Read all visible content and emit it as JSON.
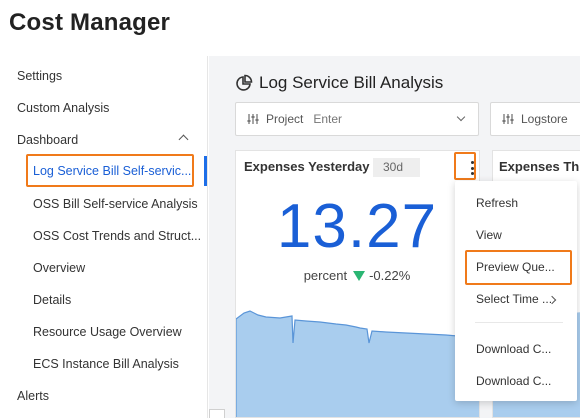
{
  "app": {
    "title": "Cost Manager"
  },
  "sidebar": {
    "items": [
      {
        "label": "Settings"
      },
      {
        "label": "Custom Analysis"
      },
      {
        "label": "Dashboard"
      },
      {
        "label": "Log Service Bill Self-servic..."
      },
      {
        "label": "OSS Bill Self-service Analysis"
      },
      {
        "label": "OSS Cost Trends and Struct..."
      },
      {
        "label": "Overview"
      },
      {
        "label": "Details"
      },
      {
        "label": "Resource Usage Overview"
      },
      {
        "label": "ECS Instance Bill Analysis"
      },
      {
        "label": "Alerts"
      }
    ]
  },
  "main": {
    "title": "Log Service Bill Analysis",
    "filters": [
      {
        "label": "Project",
        "placeholder": "Enter"
      },
      {
        "label": "Logstore"
      }
    ],
    "cards": [
      {
        "title": "Expenses Yesterday",
        "badge": "30d",
        "value": "13.27",
        "delta_label": "percent",
        "delta_value": "-0.22%",
        "delta_direction": "down"
      },
      {
        "title": "Expenses Thi"
      }
    ]
  },
  "menu": {
    "items": [
      {
        "label": "Refresh"
      },
      {
        "label": "View"
      },
      {
        "label": "Preview Que..."
      },
      {
        "label": "Select Time ..."
      },
      {
        "label": "Download C..."
      },
      {
        "label": "Download C..."
      }
    ]
  },
  "colors": {
    "accent": "#1a5fd6",
    "highlight": "#f07a1a",
    "trend_down": "#2bb673",
    "area_fill": "#a9cdee"
  }
}
